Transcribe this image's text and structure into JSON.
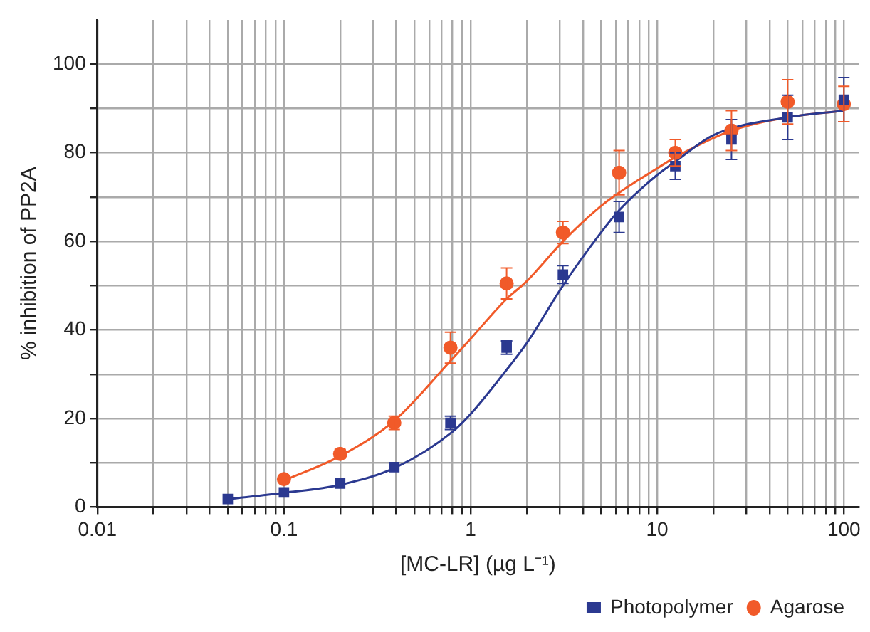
{
  "chart_data": {
    "type": "scatter",
    "xlabel": "[MC-LR] (µg L⁻¹)",
    "ylabel": "% inhibition of PP2A",
    "log": "x",
    "grid": true,
    "legend": "bottom right",
    "xlim": [
      0.01,
      120
    ],
    "ylim": [
      0,
      110
    ],
    "xticks": [
      0.01,
      {
        "value": 0.02,
        "label": null
      },
      {
        "value": 0.03,
        "label": null
      },
      {
        "value": 0.04,
        "label": null
      },
      {
        "value": 0.05,
        "label": null
      },
      {
        "value": 0.06,
        "label": null
      },
      {
        "value": 0.07,
        "label": null
      },
      {
        "value": 0.08,
        "label": null
      },
      {
        "value": 0.09,
        "label": null
      },
      0.1,
      {
        "value": 0.2,
        "label": null
      },
      {
        "value": 0.3,
        "label": null
      },
      {
        "value": 0.4,
        "label": null
      },
      {
        "value": 0.5,
        "label": null
      },
      {
        "value": 0.6,
        "label": null
      },
      {
        "value": 0.7,
        "label": null
      },
      {
        "value": 0.8,
        "label": null
      },
      {
        "value": 0.9,
        "label": null
      },
      1,
      {
        "value": 2,
        "label": null
      },
      {
        "value": 3,
        "label": null
      },
      {
        "value": 4,
        "label": null
      },
      {
        "value": 5,
        "label": null
      },
      {
        "value": 6,
        "label": null
      },
      {
        "value": 7,
        "label": null
      },
      {
        "value": 8,
        "label": null
      },
      {
        "value": 9,
        "label": null
      },
      10,
      {
        "value": 20,
        "label": null
      },
      {
        "value": 30,
        "label": null
      },
      {
        "value": 40,
        "label": null
      },
      {
        "value": 50,
        "label": null
      },
      {
        "value": 60,
        "label": null
      },
      {
        "value": 70,
        "label": null
      },
      {
        "value": 80,
        "label": null
      },
      {
        "value": 90,
        "label": null
      },
      100
    ],
    "yticks": [
      0,
      {
        "value": 10,
        "label": null
      },
      20,
      {
        "value": 30,
        "label": null
      },
      40,
      {
        "value": 50,
        "label": null
      },
      60,
      {
        "value": 70,
        "label": null
      },
      80,
      {
        "value": 90,
        "label": null
      },
      100
    ],
    "series": [
      {
        "name": "Photopolymer",
        "marker": "square",
        "color": "#2b3990",
        "x": [
          0.05,
          0.1,
          0.2,
          0.39,
          0.78,
          1.56,
          3.125,
          6.25,
          12.5,
          25,
          50,
          100
        ],
        "values": [
          1.8,
          3.3,
          5.3,
          9,
          19,
          36,
          52.5,
          65.5,
          77,
          83,
          88,
          92
        ],
        "errors": [
          null,
          null,
          null,
          null,
          1.5,
          1.5,
          2,
          3.5,
          3,
          4.5,
          5,
          5
        ]
      },
      {
        "name": "Agarose",
        "marker": "circle",
        "color": "#f15a29",
        "x": [
          0.1,
          0.2,
          0.39,
          0.78,
          1.56,
          3.125,
          6.25,
          12.5,
          25,
          50,
          100
        ],
        "values": [
          6.3,
          12,
          19,
          36,
          50.5,
          62,
          75.5,
          80,
          85,
          91.5,
          91
        ],
        "errors": [
          null,
          1,
          1.5,
          3.5,
          3.5,
          2.5,
          5,
          3,
          4.5,
          5,
          4
        ]
      },
      {
        "type": "line",
        "marker": "none",
        "color": "#2b3990",
        "x": [
          0.05,
          0.1,
          0.2,
          0.4,
          0.8,
          1,
          1.56,
          2,
          3.125,
          5,
          6.25,
          10,
          12.5,
          20,
          50,
          100
        ],
        "values": [
          1.8,
          3.2,
          5,
          9,
          17,
          21,
          31,
          37,
          50,
          62,
          67,
          75,
          78,
          84,
          88,
          89.5
        ]
      },
      {
        "type": "line",
        "marker": "none",
        "color": "#f15a29",
        "x": [
          0.1,
          0.2,
          0.39,
          0.78,
          1,
          1.56,
          2,
          3.125,
          5,
          6.25,
          10,
          12.5,
          25,
          50,
          100
        ],
        "values": [
          6,
          11.5,
          19.5,
          33,
          38,
          47,
          51,
          60,
          68,
          71,
          76.5,
          79,
          85,
          88,
          89.5
        ]
      }
    ]
  }
}
